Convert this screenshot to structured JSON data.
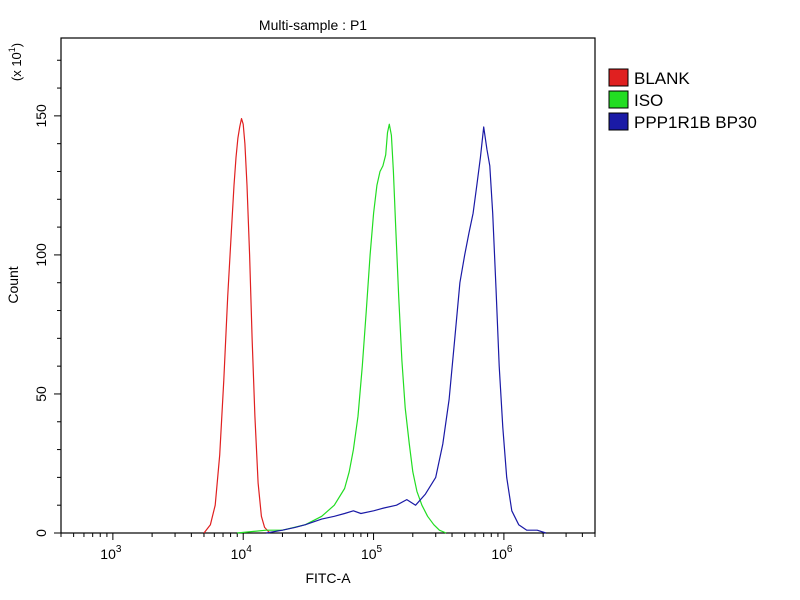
{
  "chart_data": {
    "type": "line",
    "title": "Multi-sample : P1",
    "xlabel": "FITC-A",
    "ylabel": "Count",
    "y_multiplier": "(x 10",
    "y_multiplier_exp": "1",
    "y_multiplier_close": ")",
    "x_scale": "log",
    "xlim": [
      400,
      5000000
    ],
    "ylim": [
      0,
      178
    ],
    "x_ticks": [
      {
        "value": 1000,
        "base": "10",
        "exp": "3"
      },
      {
        "value": 10000,
        "base": "10",
        "exp": "4"
      },
      {
        "value": 100000,
        "base": "10",
        "exp": "5"
      },
      {
        "value": 1000000,
        "base": "10",
        "exp": "6"
      }
    ],
    "y_ticks": [
      {
        "value": 0,
        "label": "0"
      },
      {
        "value": 50,
        "label": "50"
      },
      {
        "value": 100,
        "label": "100"
      },
      {
        "value": 150,
        "label": "150"
      }
    ],
    "grid": false,
    "legend_position": "right",
    "series": [
      {
        "name": "BLANK",
        "color": "#e02020",
        "x": [
          5000,
          5600,
          6100,
          6600,
          7100,
          7600,
          8100,
          8500,
          8800,
          9100,
          9400,
          9700,
          10000,
          10300,
          10700,
          11200,
          11700,
          12300,
          13000,
          13800,
          14600,
          16000
        ],
        "y": [
          0,
          3,
          10,
          28,
          55,
          85,
          108,
          125,
          135,
          142,
          146,
          149,
          147,
          140,
          125,
          100,
          70,
          42,
          18,
          6,
          2,
          0
        ]
      },
      {
        "name": "ISO",
        "color": "#22dd22",
        "x": [
          9000,
          15000,
          20000,
          30000,
          40000,
          50000,
          60000,
          65000,
          70000,
          76000,
          82000,
          88000,
          94000,
          100000,
          106000,
          112000,
          118000,
          124000,
          128000,
          132000,
          137000,
          142000,
          148000,
          156000,
          165000,
          175000,
          188000,
          200000,
          215000,
          235000,
          260000,
          290000,
          320000,
          360000
        ],
        "y": [
          0,
          1,
          1,
          3,
          6,
          10,
          16,
          22,
          30,
          42,
          60,
          80,
          100,
          115,
          125,
          130,
          132,
          136,
          144,
          147,
          143,
          130,
          110,
          85,
          62,
          45,
          32,
          22,
          15,
          10,
          6,
          3,
          1,
          0
        ]
      },
      {
        "name": "PPP1R1B BP30",
        "color": "#1a1aa6",
        "x": [
          15000,
          20000,
          25000,
          30000,
          40000,
          50000,
          60000,
          70000,
          80000,
          100000,
          120000,
          150000,
          180000,
          210000,
          250000,
          300000,
          340000,
          380000,
          420000,
          460000,
          500000,
          540000,
          580000,
          620000,
          660000,
          700000,
          740000,
          780000,
          820000,
          870000,
          920000,
          980000,
          1050000,
          1150000,
          1300000,
          1500000,
          1800000,
          2100000
        ],
        "y": [
          0,
          1,
          2,
          3,
          5,
          6,
          7,
          8,
          7,
          8,
          9,
          10,
          12,
          10,
          14,
          20,
          32,
          48,
          70,
          90,
          100,
          108,
          115,
          125,
          135,
          146,
          138,
          132,
          115,
          88,
          60,
          38,
          20,
          8,
          3,
          1,
          1,
          0
        ]
      }
    ]
  }
}
